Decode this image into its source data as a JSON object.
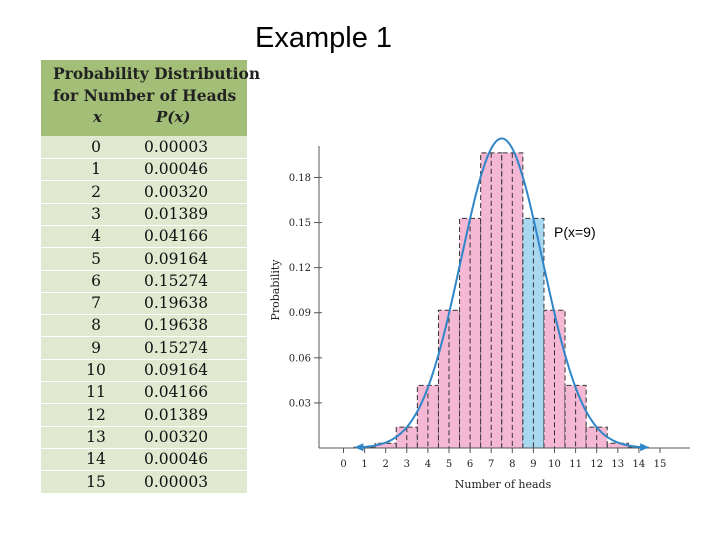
{
  "slide": {
    "title": "Example 1"
  },
  "table": {
    "title_line1": "Probability Distribution",
    "title_line2": "for Number of Heads",
    "col_x": "x",
    "col_p": "P(x)",
    "rows": [
      {
        "x": "0",
        "p": "0.00003"
      },
      {
        "x": "1",
        "p": "0.00046"
      },
      {
        "x": "2",
        "p": "0.00320"
      },
      {
        "x": "3",
        "p": "0.01389"
      },
      {
        "x": "4",
        "p": "0.04166"
      },
      {
        "x": "5",
        "p": "0.09164"
      },
      {
        "x": "6",
        "p": "0.15274"
      },
      {
        "x": "7",
        "p": "0.19638"
      },
      {
        "x": "8",
        "p": "0.19638"
      },
      {
        "x": "9",
        "p": "0.15274"
      },
      {
        "x": "10",
        "p": "0.09164"
      },
      {
        "x": "11",
        "p": "0.04166"
      },
      {
        "x": "12",
        "p": "0.01389"
      },
      {
        "x": "13",
        "p": "0.00320"
      },
      {
        "x": "14",
        "p": "0.00046"
      },
      {
        "x": "15",
        "p": "0.00003"
      }
    ]
  },
  "callout": {
    "label": "P(x=9)"
  },
  "colors": {
    "bar_fill": "#f4b8d4",
    "highlight_fill": "#a8d8f0",
    "curve": "#2f86c8",
    "header_bg": "#a3bf77",
    "table_bg": "#e0e8d0"
  },
  "chart_data": {
    "type": "bar",
    "xlabel": "Number of heads",
    "ylabel": "Probability",
    "x": [
      0,
      1,
      2,
      3,
      4,
      5,
      6,
      7,
      8,
      9,
      10,
      11,
      12,
      13,
      14,
      15
    ],
    "values": [
      3e-05,
      0.00046,
      0.0032,
      0.01389,
      0.04166,
      0.09164,
      0.15274,
      0.19638,
      0.19638,
      0.15274,
      0.09164,
      0.04166,
      0.01389,
      0.0032,
      0.00046,
      3e-05
    ],
    "highlight_x": 9,
    "x_ticks": [
      "0",
      "1",
      "2",
      "3",
      "4",
      "5",
      "6",
      "7",
      "8",
      "9",
      "10",
      "11",
      "12",
      "13",
      "14",
      "15"
    ],
    "y_ticks": [
      {
        "value": 0.03,
        "label": "0.03"
      },
      {
        "value": 0.06,
        "label": "0.06"
      },
      {
        "value": 0.09,
        "label": "0.09"
      },
      {
        "value": 0.12,
        "label": "0.12"
      },
      {
        "value": 0.15,
        "label": "0.15"
      },
      {
        "value": 0.18,
        "label": "0.18"
      }
    ],
    "ylim": [
      0,
      0.2
    ],
    "xlim": [
      0,
      15
    ],
    "curve": "normal approximation overlay with arrow ends",
    "grid": false
  }
}
